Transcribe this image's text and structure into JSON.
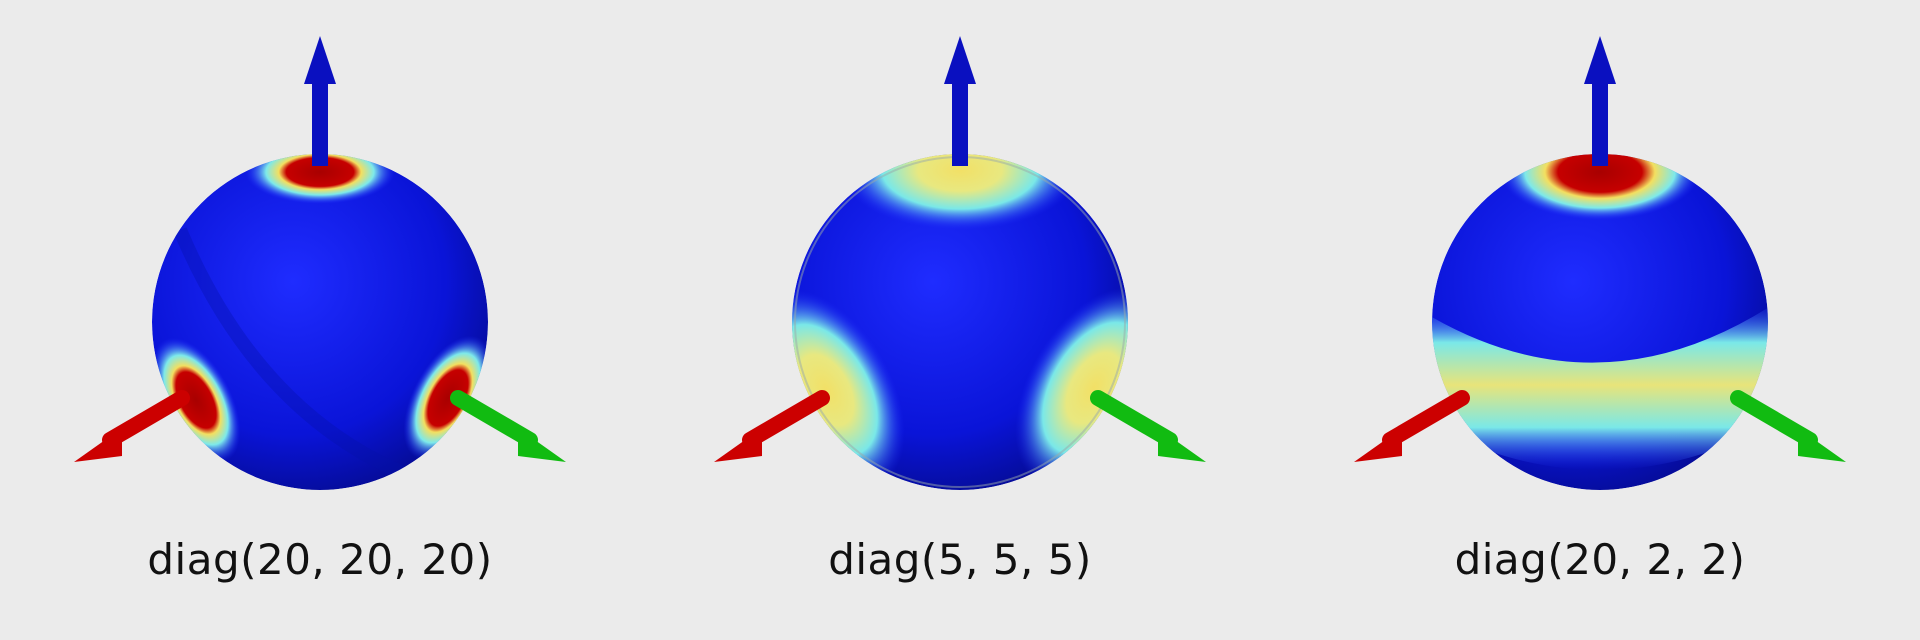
{
  "panels": [
    {
      "id": "p1",
      "label": "diag(20, 20, 20)"
    },
    {
      "id": "p2",
      "label": "diag(5, 5, 5)"
    },
    {
      "id": "p3",
      "label": "diag(20, 2, 2)"
    }
  ],
  "colors": {
    "background": "#ebebeb",
    "sphere_base": "#0a14d8",
    "axis_blue": "#0a10c0",
    "axis_red": "#cc0000",
    "axis_green": "#11bb11",
    "hot": "#b00000",
    "warm": "#f2e066",
    "cool": "#7ae8e8"
  }
}
